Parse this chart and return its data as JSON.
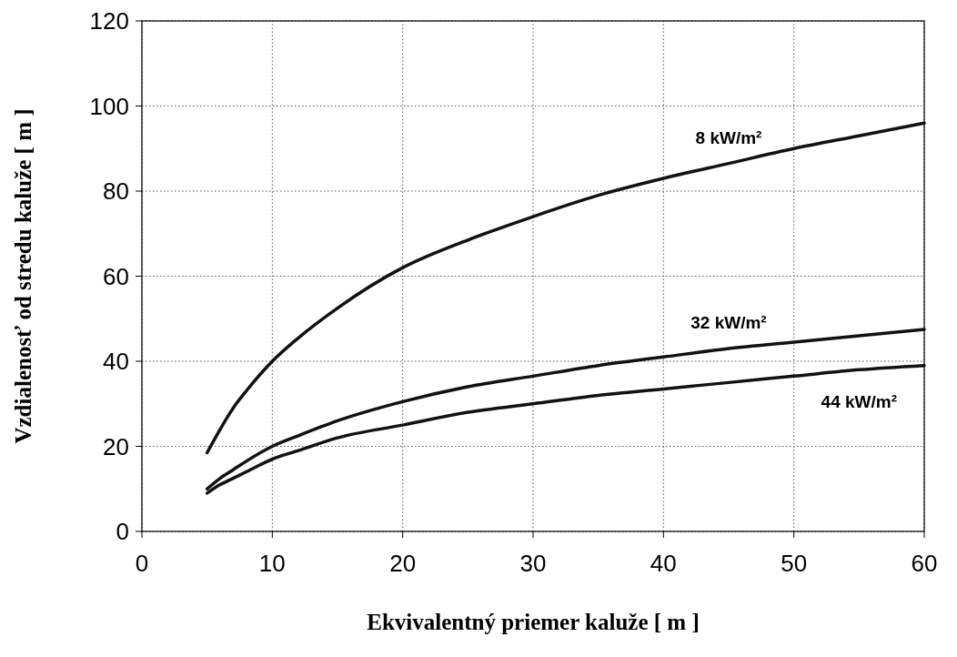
{
  "chart_data": {
    "type": "line",
    "xlabel": "Ekvivalentný priemer  kaluže  [ m ]",
    "ylabel": "Vzdialenosť  od stredu  kaluže  [ m ]",
    "xlim": [
      0,
      60
    ],
    "ylim": [
      0,
      120
    ],
    "xticks": [
      0,
      10,
      20,
      30,
      40,
      50,
      60
    ],
    "yticks": [
      0,
      20,
      40,
      60,
      80,
      100,
      120
    ],
    "grid": true,
    "line_style": "solid",
    "x": [
      5,
      6,
      7,
      8,
      10,
      12,
      15,
      20,
      25,
      30,
      35,
      40,
      45,
      50,
      55,
      60
    ],
    "series": [
      {
        "name": "8 kW/m²",
        "color": "#111111",
        "values": [
          18.5,
          24,
          29,
          33,
          40,
          45.5,
          52.5,
          62,
          68.5,
          74,
          79,
          83,
          86.5,
          90,
          93,
          96
        ]
      },
      {
        "name": "32 kW/m²",
        "color": "#111111",
        "values": [
          10,
          12.5,
          14.5,
          16.5,
          20,
          22.5,
          26,
          30.5,
          34,
          36.5,
          39,
          41,
          43,
          44.5,
          46,
          47.5
        ]
      },
      {
        "name": "44 kW/m²",
        "color": "#111111",
        "values": [
          9,
          11,
          12.5,
          14,
          17,
          19,
          22,
          25,
          28,
          30,
          32,
          33.5,
          35,
          36.5,
          38,
          39
        ]
      }
    ]
  }
}
